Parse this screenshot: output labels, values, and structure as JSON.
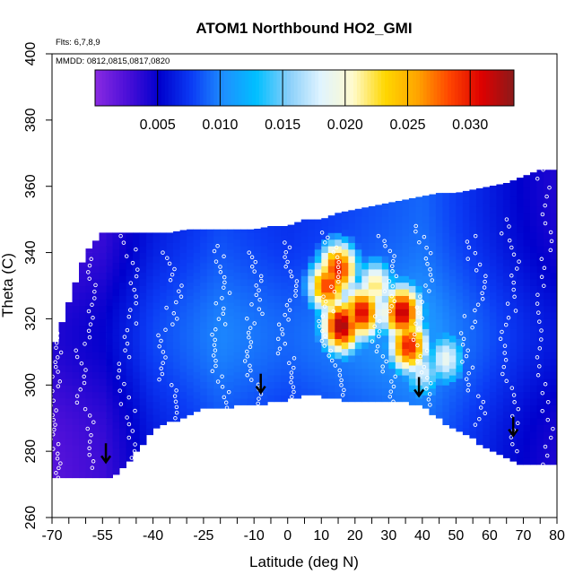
{
  "chart_data": {
    "type": "heatmap",
    "title": "ATOM1 Northbound HO2_GMI",
    "flights_note": "Flts: 6,7,8,9",
    "dates_note": "MMDD: 0812,0815,0817,0820",
    "xlabel": "Latitude (deg N)",
    "ylabel": "Theta (C)",
    "xlim": [
      -70,
      80
    ],
    "ylim": [
      260,
      400
    ],
    "x_ticks": [
      -70,
      -55,
      -40,
      -25,
      -10,
      0,
      10,
      20,
      30,
      40,
      50,
      60,
      70,
      80
    ],
    "x_tick_labels": [
      "-70",
      "-55",
      "-40",
      "-25",
      "-10",
      "0",
      "10",
      "20",
      "30",
      "40",
      "50",
      "60",
      "70",
      "80"
    ],
    "x_minor_ticks": [
      -65,
      -60,
      -50,
      -45,
      -35,
      -30,
      -20,
      -15,
      -5,
      5,
      15,
      25,
      35,
      45,
      55,
      65,
      75
    ],
    "y_ticks": [
      260,
      280,
      300,
      320,
      340,
      360,
      380,
      400
    ],
    "y_tick_labels": [
      "260",
      "280",
      "300",
      "320",
      "340",
      "360",
      "380",
      "400"
    ],
    "colorbar": {
      "range": [
        0,
        0.0335
      ],
      "ticks": [
        0.005,
        0.01,
        0.015,
        0.02,
        0.025,
        0.03
      ],
      "tick_labels": [
        "0.005",
        "0.010",
        "0.015",
        "0.020",
        "0.025",
        "0.030"
      ],
      "colors": [
        "#8a2be2",
        "#4b0fd8",
        "#0000cd",
        "#0b3cf5",
        "#1e90ff",
        "#00bfff",
        "#87cefa",
        "#e0f4ff",
        "#fffacd",
        "#ffd700",
        "#ffa500",
        "#ff4500",
        "#dd0000",
        "#8b1a1a"
      ]
    },
    "coverage": {
      "latitudes": [
        -70,
        -65,
        -60,
        -55,
        -50,
        -45,
        -40,
        -35,
        -30,
        -25,
        -20,
        -15,
        -10,
        -5,
        0,
        5,
        10,
        15,
        20,
        25,
        30,
        35,
        40,
        45,
        50,
        55,
        60,
        65,
        70,
        75,
        80
      ],
      "theta_bottom": [
        272,
        272,
        272,
        272,
        274,
        280,
        287,
        289,
        291,
        293,
        293,
        294,
        294,
        295,
        296,
        297,
        297,
        296,
        295,
        295,
        295,
        295,
        294,
        290,
        287,
        284,
        281,
        278,
        276,
        276,
        276
      ],
      "theta_top": [
        310,
        325,
        340,
        346,
        346,
        346,
        346,
        346,
        347,
        347,
        347,
        347,
        347,
        348,
        348,
        350,
        350,
        352,
        353,
        354,
        355,
        356,
        357,
        358,
        358,
        359,
        360,
        361,
        363,
        365,
        365
      ]
    },
    "hotspots": [
      {
        "lat": 12,
        "theta": 330,
        "value": 0.029
      },
      {
        "lat": 15,
        "theta": 335,
        "value": 0.03
      },
      {
        "lat": 16,
        "theta": 318,
        "value": 0.033
      },
      {
        "lat": 22,
        "theta": 322,
        "value": 0.031
      },
      {
        "lat": 34,
        "theta": 322,
        "value": 0.032
      },
      {
        "lat": 36,
        "theta": 312,
        "value": 0.03
      },
      {
        "lat": 26,
        "theta": 330,
        "value": 0.022
      },
      {
        "lat": 47,
        "theta": 308,
        "value": 0.019
      },
      {
        "lat": 40,
        "theta": 304,
        "value": 0.018
      }
    ],
    "background_value": 0.002,
    "flight_paths": [
      {
        "theta": [
          272,
          320
        ],
        "lat": [
          -70,
          -68
        ]
      },
      {
        "theta": [
          275,
          340
        ],
        "lat": [
          -62,
          -58
        ]
      },
      {
        "theta": [
          278,
          345
        ],
        "lat": [
          -50,
          -45
        ]
      },
      {
        "theta": [
          285,
          340
        ],
        "lat": [
          -38,
          -32
        ]
      },
      {
        "theta": [
          290,
          342
        ],
        "lat": [
          -22,
          -18
        ]
      },
      {
        "theta": [
          293,
          340
        ],
        "lat": [
          -12,
          -8
        ]
      },
      {
        "theta": [
          295,
          343
        ],
        "lat": [
          -2,
          2
        ]
      },
      {
        "theta": [
          297,
          346
        ],
        "lat": [
          10,
          16
        ]
      },
      {
        "theta": [
          295,
          345
        ],
        "lat": [
          26,
          32
        ]
      },
      {
        "theta": [
          294,
          348
        ],
        "lat": [
          38,
          42
        ]
      },
      {
        "theta": [
          288,
          345
        ],
        "lat": [
          52,
          58
        ]
      },
      {
        "theta": [
          280,
          350
        ],
        "lat": [
          64,
          68
        ]
      },
      {
        "theta": [
          276,
          365
        ],
        "lat": [
          74,
          78
        ]
      }
    ],
    "arrow_markers": [
      {
        "lat": -54,
        "theta": 277
      },
      {
        "lat": -8,
        "theta": 298
      },
      {
        "lat": 39,
        "theta": 297
      },
      {
        "lat": 67,
        "theta": 285
      }
    ]
  }
}
